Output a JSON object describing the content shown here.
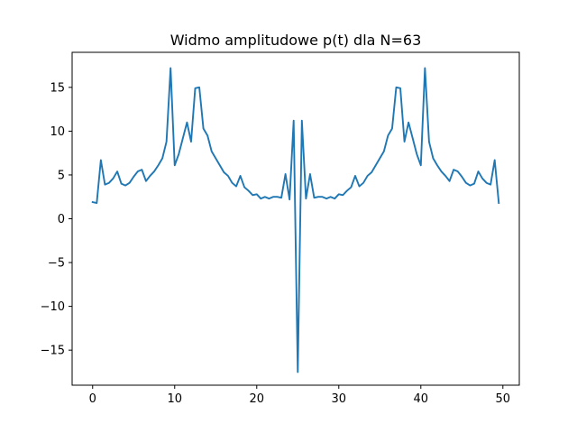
{
  "chart_data": {
    "type": "line",
    "title": "Widmo amplitudowe p(t) dla N=63",
    "xlabel": "",
    "ylabel": "",
    "xlim": [
      -2.5,
      52.0
    ],
    "ylim": [
      -19.0,
      19.0
    ],
    "x_ticks": [
      0,
      10,
      20,
      30,
      40,
      50
    ],
    "y_ticks": [
      -15,
      -10,
      -5,
      0,
      5,
      10,
      15
    ],
    "x_tick_labels": [
      "0",
      "10",
      "20",
      "30",
      "40",
      "50"
    ],
    "y_tick_labels": [
      "−15",
      "−10",
      "−5",
      "0",
      "5",
      "10",
      "15"
    ],
    "grid": false,
    "legend": "none",
    "series": [
      {
        "color": "#1f77b4",
        "x": [
          0.0,
          0.5,
          1.0,
          1.5,
          2.0,
          2.5,
          3.0,
          3.5,
          4.0,
          4.5,
          5.0,
          5.5,
          6.0,
          6.5,
          7.0,
          7.5,
          8.0,
          8.5,
          9.0,
          9.5,
          10.0,
          10.5,
          11.0,
          11.5,
          12.0,
          12.5,
          13.0,
          13.5,
          14.0,
          14.5,
          15.0,
          15.5,
          16.0,
          16.5,
          17.0,
          17.5,
          18.0,
          18.5,
          19.0,
          19.5,
          20.0,
          20.5,
          21.0,
          21.5,
          22.0,
          22.5,
          23.0,
          23.5,
          24.0,
          24.5,
          25.0,
          25.5,
          26.0,
          26.5,
          27.0,
          27.5,
          28.0,
          28.5,
          29.0,
          29.5,
          30.0,
          30.5,
          31.0,
          31.5,
          32.0,
          32.5,
          33.0,
          33.5,
          34.0,
          34.5,
          35.0,
          35.5,
          36.0,
          36.5,
          37.0,
          37.5,
          38.0,
          38.5,
          39.0,
          39.5,
          40.0,
          40.5,
          41.0,
          41.5,
          42.0,
          42.5,
          43.0,
          43.5,
          44.0,
          44.5,
          45.0,
          45.5,
          46.0,
          46.5,
          47.0,
          47.5,
          48.0,
          48.5,
          49.0,
          49.5
        ],
        "y": [
          1.9,
          1.8,
          6.7,
          3.9,
          4.1,
          4.6,
          5.4,
          4.0,
          3.8,
          4.1,
          4.8,
          5.4,
          5.6,
          4.3,
          4.9,
          5.4,
          6.1,
          6.9,
          8.8,
          17.2,
          6.1,
          7.4,
          9.2,
          11.0,
          8.8,
          14.9,
          15.0,
          10.3,
          9.5,
          7.7,
          6.9,
          6.1,
          5.3,
          4.9,
          4.1,
          3.7,
          4.9,
          3.6,
          3.2,
          2.7,
          2.8,
          2.3,
          2.5,
          2.3,
          2.5,
          2.5,
          2.4,
          5.1,
          2.2,
          11.2,
          -17.5,
          11.2,
          2.3,
          5.1,
          2.4,
          2.5,
          2.5,
          2.3,
          2.5,
          2.3,
          2.8,
          2.7,
          3.2,
          3.6,
          4.9,
          3.7,
          4.1,
          4.9,
          5.3,
          6.1,
          6.9,
          7.7,
          9.5,
          10.3,
          15.0,
          14.9,
          8.8,
          11.0,
          9.2,
          7.4,
          6.1,
          17.2,
          8.8,
          6.9,
          6.1,
          5.4,
          4.9,
          4.3,
          5.6,
          5.4,
          4.8,
          4.1,
          3.8,
          4.0,
          5.4,
          4.6,
          4.1,
          3.9,
          6.7,
          1.8
        ]
      }
    ]
  }
}
